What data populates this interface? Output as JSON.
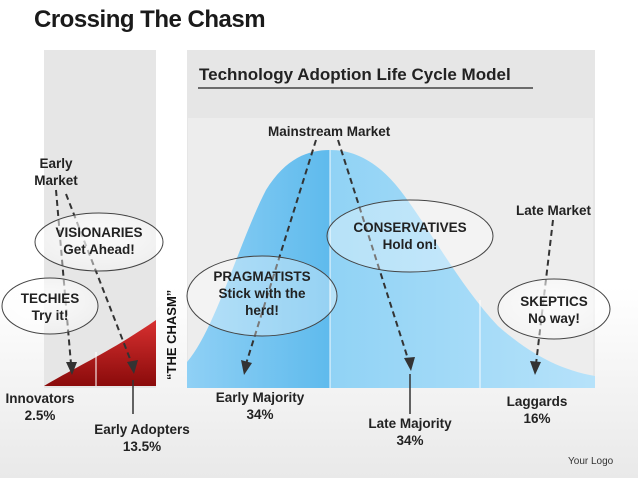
{
  "title": "Crossing The Chasm",
  "model_title": "Technology Adoption Life Cycle Model",
  "markets": {
    "early": "Early\nMarket",
    "mainstream": "Mainstream Market",
    "late": "Late Market"
  },
  "chasm_label": "“THE CHASM”",
  "bubbles": {
    "techies": "TECHIES\nTry it!",
    "visionaries": "VISIONARIES\nGet Ahead!",
    "pragmatists": "PRAGMATISTS\nStick with the\nherd!",
    "conservatives": "CONSERVATIVES\nHold on!",
    "skeptics": "SKEPTICS\nNo way!"
  },
  "segments": {
    "innovators": "Innovators\n2.5%",
    "early_adopters": "Early Adopters\n13.5%",
    "early_majority": "Early Majority\n34%",
    "late_majority": "Late Majority\n34%",
    "laggards": "Laggards\n16%"
  },
  "colors": {
    "red": "#b51818",
    "blue": "#43aee8",
    "light_blue": "#9ed7f7",
    "panel": "#e6e6e6"
  },
  "logo": "Your Logo"
}
